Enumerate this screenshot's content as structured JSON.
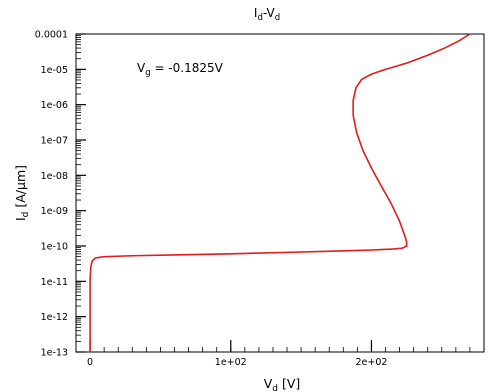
{
  "chart_data": {
    "type": "line",
    "title_main": "I",
    "title_sub1": "d",
    "title_mid": "-V",
    "title_sub2": "d",
    "xlabel_main": "V",
    "xlabel_sub": "d",
    "xlabel_unit": " [V]",
    "ylabel_main": "I",
    "ylabel_sub": "d",
    "ylabel_unit": " [A/µm]",
    "annotation_main": "V",
    "annotation_sub": "g",
    "annotation_value": " = -0.1825V",
    "xlim": [
      -10,
      280
    ],
    "ylim_log10": [
      -13,
      -4
    ],
    "y_scale": "log",
    "x_ticks": [
      {
        "value": 0,
        "label": "0"
      },
      {
        "value": 100,
        "label": "1e+02"
      },
      {
        "value": 200,
        "label": "2e+02"
      }
    ],
    "y_ticks": [
      {
        "exp": -4,
        "label": "0.0001"
      },
      {
        "exp": -5,
        "label": "1e-05"
      },
      {
        "exp": -6,
        "label": "1e-06"
      },
      {
        "exp": -7,
        "label": "1e-07"
      },
      {
        "exp": -8,
        "label": "1e-08"
      },
      {
        "exp": -9,
        "label": "1e-09"
      },
      {
        "exp": -10,
        "label": "1e-10"
      },
      {
        "exp": -11,
        "label": "1e-11"
      },
      {
        "exp": -12,
        "label": "1e-12"
      },
      {
        "exp": -13,
        "label": "1e-13"
      }
    ],
    "grid": false,
    "series": [
      {
        "color": "#e41a1c",
        "points": [
          [
            0,
            1e-13
          ],
          [
            0,
            2e-12
          ],
          [
            0,
            1e-11
          ],
          [
            0.5,
            2.5e-11
          ],
          [
            1.5,
            3.8e-11
          ],
          [
            4,
            4.6e-11
          ],
          [
            10,
            5e-11
          ],
          [
            30,
            5.3e-11
          ],
          [
            60,
            5.6e-11
          ],
          [
            100,
            6e-11
          ],
          [
            140,
            6.6e-11
          ],
          [
            175,
            7.2e-11
          ],
          [
            200,
            7.7e-11
          ],
          [
            215,
            8.2e-11
          ],
          [
            222,
            8.7e-11
          ],
          [
            225,
            1e-10
          ],
          [
            225,
            1.3e-10
          ],
          [
            224,
            1.8e-10
          ],
          [
            220,
            5e-10
          ],
          [
            214,
            1.6e-09
          ],
          [
            207,
            5e-09
          ],
          [
            200,
            1.6e-08
          ],
          [
            194,
            5e-08
          ],
          [
            189.5,
            1.6e-07
          ],
          [
            187,
            5e-07
          ],
          [
            187,
            1.3e-06
          ],
          [
            189,
            3e-06
          ],
          [
            193,
            5.2e-06
          ],
          [
            200,
            7.3e-06
          ],
          [
            210,
            1e-05
          ],
          [
            225,
            1.5e-05
          ],
          [
            240,
            2.5e-05
          ],
          [
            252,
            4e-05
          ],
          [
            262,
            6.3e-05
          ],
          [
            270,
            0.0001
          ]
        ]
      }
    ]
  }
}
